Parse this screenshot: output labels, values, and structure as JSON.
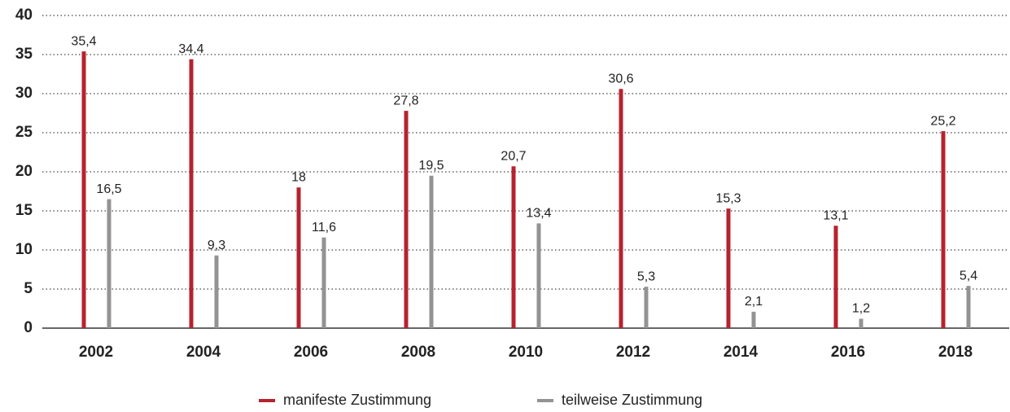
{
  "chart_data": {
    "type": "bar",
    "categories": [
      "2002",
      "2004",
      "2006",
      "2008",
      "2010",
      "2012",
      "2014",
      "2016",
      "2018"
    ],
    "series": [
      {
        "name": "manifeste Zustimmung",
        "color": "#b5232f",
        "values": [
          35.4,
          34.4,
          18,
          27.8,
          20.7,
          30.6,
          15.3,
          13.1,
          25.2
        ],
        "value_labels": [
          "35,4",
          "34,4",
          "18",
          "27,8",
          "20,7",
          "30,6",
          "15,3",
          "13,1",
          "25,2"
        ]
      },
      {
        "name": "teilweise Zustimmung",
        "color": "#939393",
        "values": [
          16.5,
          9.3,
          11.6,
          19.5,
          13.4,
          5.3,
          2.1,
          1.2,
          5.4
        ],
        "value_labels": [
          "16,5",
          "9,3",
          "11,6",
          "19,5",
          "13,4",
          "5,3",
          "2,1",
          "1,2",
          "5,4"
        ]
      }
    ],
    "ylim": [
      0,
      40
    ],
    "yticks": [
      0,
      5,
      10,
      15,
      20,
      25,
      30,
      35,
      40
    ],
    "grid": true,
    "legend": "bottom"
  }
}
